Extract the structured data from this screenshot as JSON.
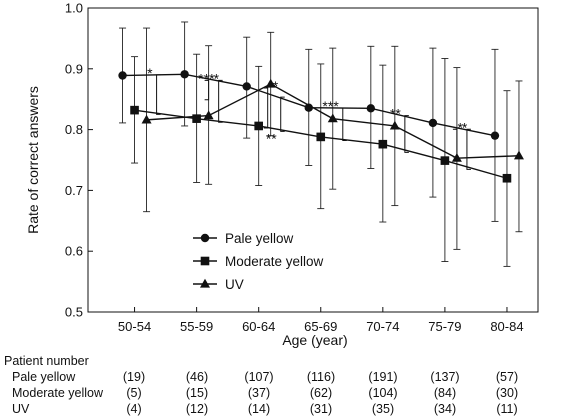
{
  "chart_data": {
    "type": "line",
    "xlabel": "Age (year)",
    "ylabel": "Rate of correct answers",
    "ylim": [
      0.5,
      1.0
    ],
    "yticks": [
      "0.5",
      "0.6",
      "0.7",
      "0.8",
      "0.9",
      "1.0"
    ],
    "categories": [
      "50-54",
      "55-59",
      "60-64",
      "65-69",
      "70-74",
      "75-79",
      "80-84"
    ],
    "legend_position": "lower-left",
    "series": [
      {
        "name": "Pale yellow",
        "marker": "circle",
        "offset": -1,
        "values": [
          0.889,
          0.891,
          0.871,
          0.836,
          0.835,
          0.811,
          0.79
        ],
        "lower": [
          0.811,
          0.806,
          0.786,
          0.741,
          0.736,
          0.689,
          0.649
        ],
        "upper": [
          0.967,
          0.977,
          0.952,
          0.932,
          0.937,
          0.934,
          0.932
        ]
      },
      {
        "name": "Moderate yellow",
        "marker": "square",
        "offset": 0,
        "values": [
          0.832,
          0.818,
          0.806,
          0.788,
          0.776,
          0.749,
          0.72
        ],
        "lower": [
          0.745,
          0.713,
          0.708,
          0.67,
          0.648,
          0.583,
          0.575
        ],
        "upper": [
          0.92,
          0.924,
          0.904,
          0.908,
          0.906,
          0.917,
          0.864
        ]
      },
      {
        "name": "UV",
        "marker": "triangle",
        "offset": 1,
        "values": [
          0.816,
          0.823,
          0.875,
          0.818,
          0.806,
          0.753,
          0.757
        ],
        "lower": [
          0.665,
          0.71,
          0.79,
          0.702,
          0.675,
          0.603,
          0.632
        ],
        "upper": [
          0.967,
          0.938,
          0.96,
          0.934,
          0.937,
          0.902,
          0.88
        ]
      }
    ],
    "significance": [
      {
        "label": "*",
        "group": 1,
        "kind": "pale-moderate"
      },
      {
        "label": "*",
        "group": 1,
        "kind": "pale-uv"
      },
      {
        "label": "***",
        "group": 2,
        "kind": "pale-moderate"
      },
      {
        "label": "*",
        "group": 2,
        "kind": "moderate-uv"
      },
      {
        "label": "**",
        "group": 3,
        "kind": "pale-moderate"
      },
      {
        "label": "***",
        "group": 4,
        "kind": "pale-moderate"
      },
      {
        "label": "**",
        "group": 5,
        "kind": "pale-moderate"
      },
      {
        "label": "*",
        "group": 5,
        "kind": "pale-uv"
      },
      {
        "label": "*",
        "group": 6,
        "kind": "pale-moderate"
      }
    ]
  },
  "patient_table": {
    "title": "Patient number",
    "rows": [
      {
        "label": "Pale yellow",
        "counts": [
          "(19)",
          "(46)",
          "(107)",
          "(116)",
          "(191)",
          "(137)",
          "(57)"
        ]
      },
      {
        "label": "Moderate yellow",
        "counts": [
          "(5)",
          "(15)",
          "(37)",
          "(62)",
          "(104)",
          "(84)",
          "(30)"
        ]
      },
      {
        "label": "UV",
        "counts": [
          "(4)",
          "(12)",
          "(14)",
          "(31)",
          "(35)",
          "(34)",
          "(11)"
        ]
      }
    ]
  }
}
